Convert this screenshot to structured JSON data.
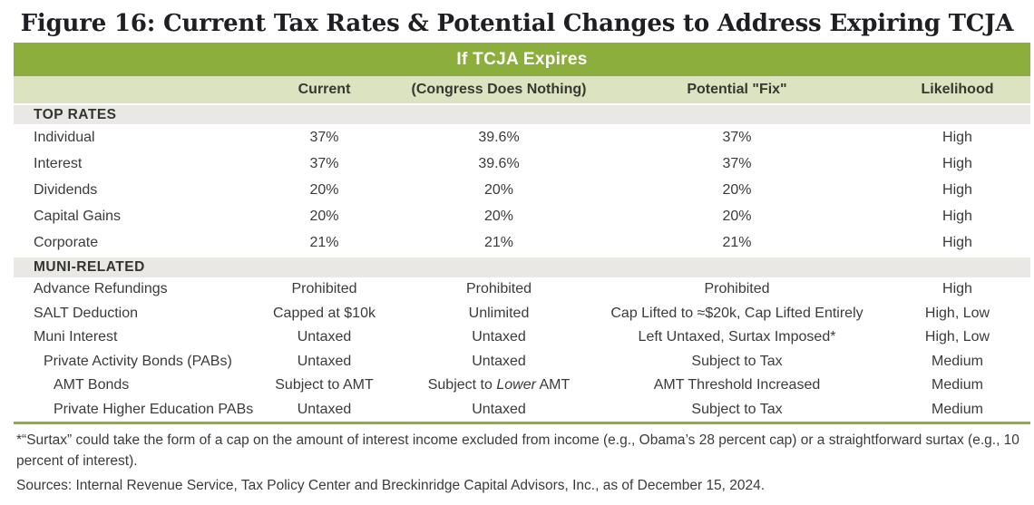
{
  "chart_data": {
    "type": "table",
    "title": "Figure 16: Current Tax Rates & Potential Changes to Address Expiring TCJA",
    "banner": "If TCJA Expires",
    "columns": [
      "",
      "Current",
      "(Congress Does Nothing)",
      "Potential \"Fix\"",
      "Likelihood"
    ],
    "rows": [
      {
        "type": "section",
        "label": "TOP RATES"
      },
      {
        "type": "data",
        "indent": 0,
        "label": "Individual",
        "current": "37%",
        "congress": "39.6%",
        "fix": "37%",
        "likelihood": "High"
      },
      {
        "type": "data",
        "indent": 0,
        "label": "Interest",
        "current": "37%",
        "congress": "39.6%",
        "fix": "37%",
        "likelihood": "High"
      },
      {
        "type": "data",
        "indent": 0,
        "label": "Dividends",
        "current": "20%",
        "congress": "20%",
        "fix": "20%",
        "likelihood": "High"
      },
      {
        "type": "data",
        "indent": 0,
        "label": "Capital Gains",
        "current": "20%",
        "congress": "20%",
        "fix": "20%",
        "likelihood": "High"
      },
      {
        "type": "data",
        "indent": 0,
        "label": "Corporate",
        "current": "21%",
        "congress": "21%",
        "fix": "21%",
        "likelihood": "High"
      },
      {
        "type": "section",
        "label": "MUNI-RELATED"
      },
      {
        "type": "data",
        "indent": 0,
        "label": "Advance Refundings",
        "current": "Prohibited",
        "congress": "Prohibited",
        "fix": "Prohibited",
        "likelihood": "High"
      },
      {
        "type": "data",
        "indent": 0,
        "label": "SALT Deduction",
        "current": "Capped at $10k",
        "congress": "Unlimited",
        "fix": "Cap Lifted to ≈$20k, Cap Lifted Entirely",
        "likelihood": "High, Low"
      },
      {
        "type": "data",
        "indent": 0,
        "label": "Muni Interest",
        "current": "Untaxed",
        "congress": "Untaxed",
        "fix": "Left Untaxed, Surtax Imposed*",
        "likelihood": "High, Low"
      },
      {
        "type": "data",
        "indent": 1,
        "label": "Private Activity Bonds (PABs)",
        "current": "Untaxed",
        "congress": "Untaxed",
        "fix": "Subject to Tax",
        "likelihood": "Medium"
      },
      {
        "type": "data",
        "indent": 2,
        "label": "AMT Bonds",
        "current": "Subject to AMT",
        "congress": "Subject to Lower AMT",
        "congress_parts": [
          "Subject to ",
          "Lower",
          " AMT"
        ],
        "fix": "AMT Threshold Increased",
        "likelihood": "Medium"
      },
      {
        "type": "data",
        "indent": 2,
        "label": "Private Higher Education PABs",
        "current": "Untaxed",
        "congress": "Untaxed",
        "fix": "Subject to Tax",
        "likelihood": "Medium"
      }
    ]
  },
  "footnote": "*“Surtax” could take the form of a cap on the amount of interest income excluded from income (e.g., Obama’s 28 percent cap) or a straightforward surtax (e.g., 10 percent of interest).",
  "sources": "Sources: Internal Revenue Service, Tax Policy Center and Breckinridge Capital Advisors, Inc., as of December 15, 2024.",
  "colors": {
    "green": "#8cae3c",
    "light_green": "#dbe3c1",
    "band_gray": "#e9e8e5",
    "text": "#3b3b3b"
  }
}
